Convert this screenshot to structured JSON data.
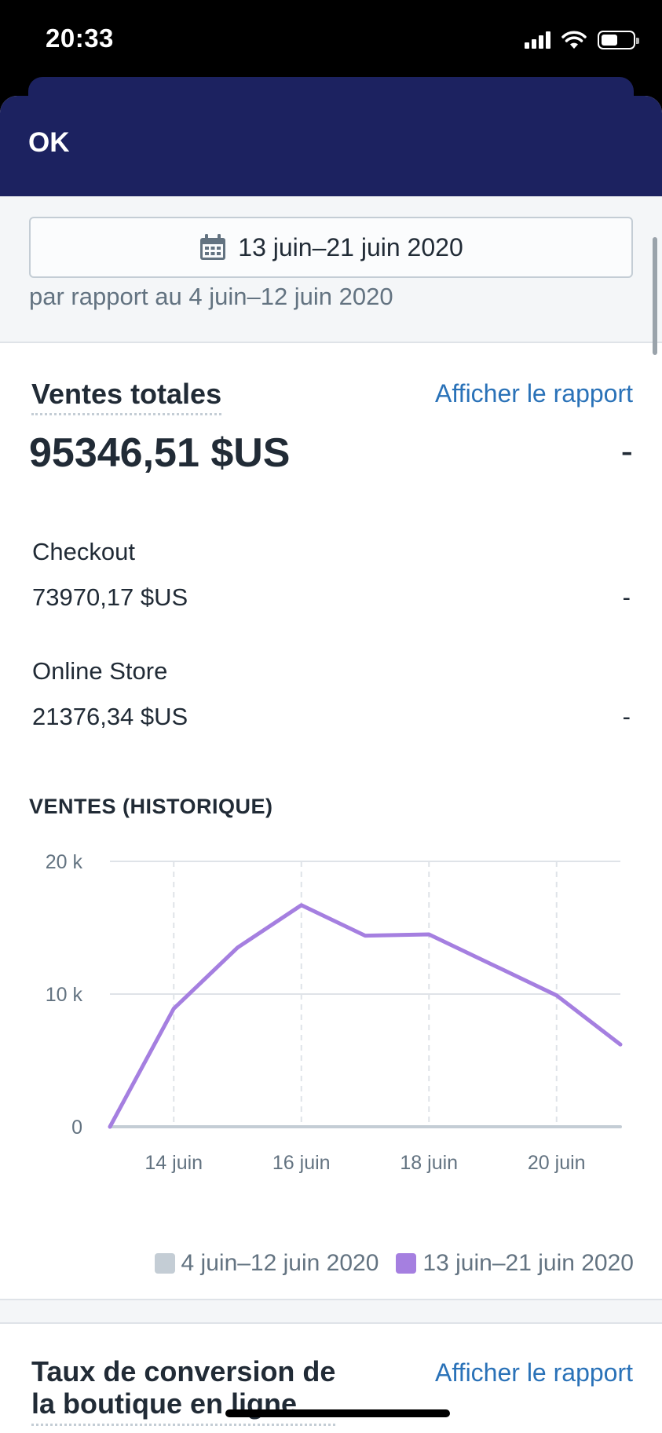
{
  "status_bar": {
    "time": "20:33"
  },
  "topbar": {
    "ok_label": "OK"
  },
  "date_range": {
    "current": "13 juin–21 juin 2020",
    "comparison": "par rapport au 4 juin–12 juin 2020"
  },
  "total_sales": {
    "title": "Ventes totales",
    "report_link": "Afficher le rapport",
    "value": "95346,51 $US",
    "change": "-",
    "channels": [
      {
        "name": "Checkout",
        "value": "73970,17 $US",
        "change": "-"
      },
      {
        "name": "Online Store",
        "value": "21376,34 $US",
        "change": "-"
      }
    ]
  },
  "chart_heading": "VENTES (HISTORIQUE)",
  "chart_data": {
    "type": "line",
    "x": [
      "13 juin",
      "14 juin",
      "15 juin",
      "16 juin",
      "17 juin",
      "18 juin",
      "19 juin",
      "20 juin",
      "21 juin"
    ],
    "x_tick_labels": [
      "14 juin",
      "16 juin",
      "18 juin",
      "20 juin"
    ],
    "y_tick_labels": [
      "20 k",
      "10 k",
      "0"
    ],
    "ylim": [
      0,
      20000
    ],
    "grid": true,
    "legend_position": "bottom-right",
    "series": [
      {
        "name": "4 juin–12 juin 2020",
        "color": "#c4cdd5",
        "values": [
          0,
          0,
          0,
          0,
          0,
          0,
          0,
          0,
          0
        ]
      },
      {
        "name": "13 juin–21 juin 2020",
        "color": "#a57fe0",
        "values": [
          0,
          8900,
          13500,
          16700,
          14400,
          14500,
          12200,
          9900,
          6200
        ]
      }
    ]
  },
  "conversion": {
    "title_line1": "Taux de conversion de",
    "title_line2": "la boutique en ligne",
    "report_link": "Afficher le rapport"
  }
}
